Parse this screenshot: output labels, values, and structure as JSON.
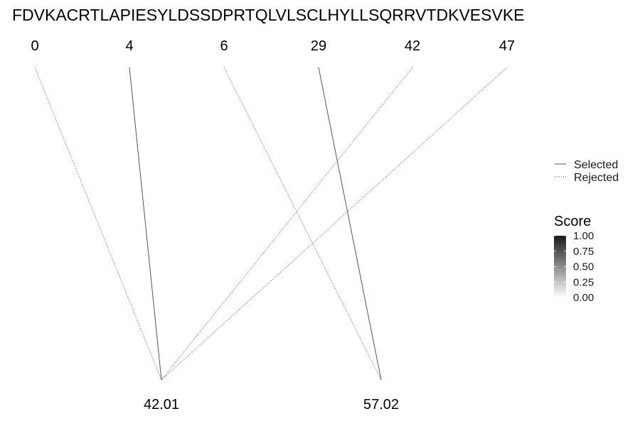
{
  "sequence": "FDVKACRTLAPIESYLDSSDPRTQLVLSCLHYLLSQRRVTDKVESVKE",
  "top_nodes": [
    "0",
    "4",
    "6",
    "29",
    "42",
    "47"
  ],
  "bottom_nodes": [
    "42.01",
    "57.02"
  ],
  "links": [
    {
      "from": "0",
      "to": "42.01",
      "status": "Rejected"
    },
    {
      "from": "4",
      "to": "42.01",
      "status": "Selected"
    },
    {
      "from": "42",
      "to": "42.01",
      "status": "Rejected"
    },
    {
      "from": "47",
      "to": "42.01",
      "status": "Rejected"
    },
    {
      "from": "6",
      "to": "57.02",
      "status": "Rejected"
    },
    {
      "from": "29",
      "to": "57.02",
      "status": "Selected"
    }
  ],
  "legend": {
    "linetype": {
      "items": [
        {
          "label": "Selected",
          "style": "solid"
        },
        {
          "label": "Rejected",
          "style": "dotted"
        }
      ]
    },
    "score": {
      "title": "Score",
      "ticks": [
        "1.00",
        "0.75",
        "0.50",
        "0.25",
        "0.00"
      ],
      "color_high": "#1a1a1a",
      "color_low": "#ffffff"
    }
  },
  "colors": {
    "selected_line": "#555555",
    "rejected_line": "#555555"
  }
}
